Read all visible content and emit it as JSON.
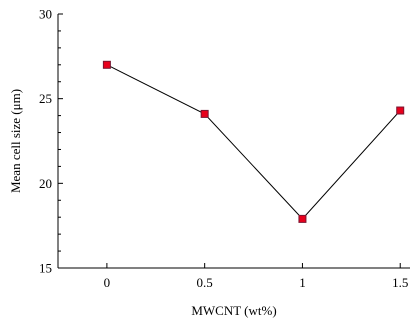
{
  "chart_data": {
    "type": "line",
    "title": "",
    "xlabel": "MWCNT (wt%)",
    "ylabel": "Mean cell size (μm)",
    "x_tick_labels": [
      "0",
      "0.5",
      "1",
      "1.5"
    ],
    "y_tick_labels": [
      "15",
      "20",
      "25",
      "30"
    ],
    "x_ticks": [
      0,
      0.5,
      1,
      1.5
    ],
    "y_ticks": [
      15,
      20,
      25,
      30
    ],
    "xlim": [
      -0.25,
      1.55
    ],
    "ylim": [
      15,
      30
    ],
    "y_minor_step": 1,
    "grid": false,
    "series": [
      {
        "x": [
          0,
          0.5,
          1,
          1.5
        ],
        "values": [
          27.0,
          24.1,
          17.9,
          24.3
        ],
        "marker": "square",
        "marker_fill": "#e8001c",
        "marker_edge": "#7a1530",
        "line_color": "#000000"
      }
    ]
  }
}
